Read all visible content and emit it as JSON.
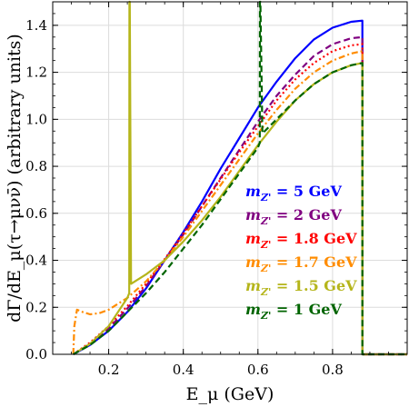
{
  "chart_data": {
    "type": "line",
    "xlabel": "E_μ (GeV)",
    "ylabel": "dΓ/dE_μ(τ→μνν̄) (arbitrary units)",
    "xlim": [
      0.05,
      1.0
    ],
    "ylim": [
      0.0,
      1.5
    ],
    "xticks": [
      "0.2",
      "0.4",
      "0.6",
      "0.8"
    ],
    "xtick_values": [
      0.2,
      0.4,
      0.6,
      0.8
    ],
    "yticks": [
      "0.0",
      "0.2",
      "0.4",
      "0.6",
      "0.8",
      "1.0",
      "1.2",
      "1.4"
    ],
    "ytick_values": [
      0.0,
      0.2,
      0.4,
      0.6,
      0.8,
      1.0,
      1.2,
      1.4
    ],
    "grid": true,
    "legend_placement": "center-right",
    "series": [
      {
        "name": "m_Z' = 5 GeV",
        "label_prefix": "m",
        "label_sub": "Z'",
        "label_suffix": " = 5 GeV",
        "color": "#0000ff",
        "style": "solid",
        "x": [
          0.105,
          0.15,
          0.2,
          0.25,
          0.3,
          0.35,
          0.4,
          0.45,
          0.5,
          0.55,
          0.6,
          0.65,
          0.7,
          0.75,
          0.8,
          0.85,
          0.88
        ],
        "y": [
          0.0,
          0.04,
          0.1,
          0.18,
          0.28,
          0.4,
          0.52,
          0.65,
          0.79,
          0.92,
          1.05,
          1.16,
          1.26,
          1.34,
          1.39,
          1.415,
          1.42
        ]
      },
      {
        "name": "m_Z' = 2 GeV",
        "label_prefix": "m",
        "label_sub": "Z'",
        "label_suffix": " = 2 GeV",
        "color": "#800080",
        "style": "dashed",
        "x": [
          0.105,
          0.15,
          0.2,
          0.25,
          0.3,
          0.35,
          0.4,
          0.45,
          0.5,
          0.55,
          0.6,
          0.65,
          0.7,
          0.75,
          0.8,
          0.85,
          0.88
        ],
        "y": [
          0.0,
          0.045,
          0.11,
          0.195,
          0.29,
          0.4,
          0.51,
          0.63,
          0.75,
          0.87,
          0.99,
          1.1,
          1.19,
          1.27,
          1.32,
          1.345,
          1.35
        ]
      },
      {
        "name": "m_Z' = 1.8 GeV",
        "label_prefix": "m",
        "label_sub": "Z'",
        "label_suffix": " = 1.8 GeV",
        "color": "#ff0000",
        "style": "dotted",
        "x": [
          0.105,
          0.15,
          0.2,
          0.25,
          0.3,
          0.35,
          0.4,
          0.45,
          0.5,
          0.55,
          0.6,
          0.65,
          0.7,
          0.75,
          0.8,
          0.85,
          0.88
        ],
        "y": [
          0.0,
          0.05,
          0.12,
          0.205,
          0.3,
          0.405,
          0.515,
          0.63,
          0.745,
          0.86,
          0.97,
          1.08,
          1.17,
          1.24,
          1.29,
          1.315,
          1.32
        ]
      },
      {
        "name": "m_Z' = 1.7 GeV",
        "label_prefix": "m",
        "label_sub": "Z'",
        "label_suffix": " = 1.7 GeV",
        "color": "#ff8c00",
        "style": "dashdot",
        "x": [
          0.105,
          0.108,
          0.115,
          0.13,
          0.15,
          0.175,
          0.2,
          0.25,
          0.3,
          0.35,
          0.4,
          0.45,
          0.5,
          0.55,
          0.6,
          0.65,
          0.7,
          0.75,
          0.8,
          0.85,
          0.88
        ],
        "y": [
          0.0,
          0.12,
          0.19,
          0.18,
          0.17,
          0.175,
          0.19,
          0.24,
          0.31,
          0.4,
          0.5,
          0.61,
          0.72,
          0.83,
          0.94,
          1.04,
          1.13,
          1.2,
          1.25,
          1.28,
          1.29
        ]
      },
      {
        "name": "m_Z' = 1.5 GeV",
        "label_prefix": "m",
        "label_sub": "Z'",
        "label_suffix": " = 1.5 GeV",
        "color": "#b5b51b",
        "style": "solid",
        "x": [
          0.105,
          0.15,
          0.2,
          0.25,
          0.255,
          0.2555,
          0.2565,
          0.26,
          0.3,
          0.35,
          0.4,
          0.45,
          0.5,
          0.55,
          0.6,
          0.65,
          0.7,
          0.75,
          0.8,
          0.85,
          0.88
        ],
        "y": [
          0.0,
          0.045,
          0.12,
          0.24,
          0.26,
          1.5,
          1.5,
          0.3,
          0.34,
          0.4,
          0.48,
          0.57,
          0.67,
          0.78,
          0.89,
          0.99,
          1.08,
          1.15,
          1.2,
          1.23,
          1.24
        ]
      },
      {
        "name": "m_Z' = 1 GeV",
        "label_prefix": "m",
        "label_sub": "Z'",
        "label_suffix": " = 1 GeV",
        "color": "#006400",
        "style": "dashed",
        "x": [
          0.105,
          0.15,
          0.2,
          0.25,
          0.3,
          0.35,
          0.4,
          0.45,
          0.5,
          0.55,
          0.6,
          0.605,
          0.6055,
          0.6065,
          0.612,
          0.65,
          0.7,
          0.75,
          0.8,
          0.85,
          0.88
        ],
        "y": [
          0.0,
          0.04,
          0.1,
          0.18,
          0.26,
          0.35,
          0.45,
          0.55,
          0.66,
          0.77,
          0.88,
          0.9,
          1.5,
          1.5,
          0.94,
          1.0,
          1.08,
          1.15,
          1.2,
          1.23,
          1.24
        ]
      }
    ]
  }
}
